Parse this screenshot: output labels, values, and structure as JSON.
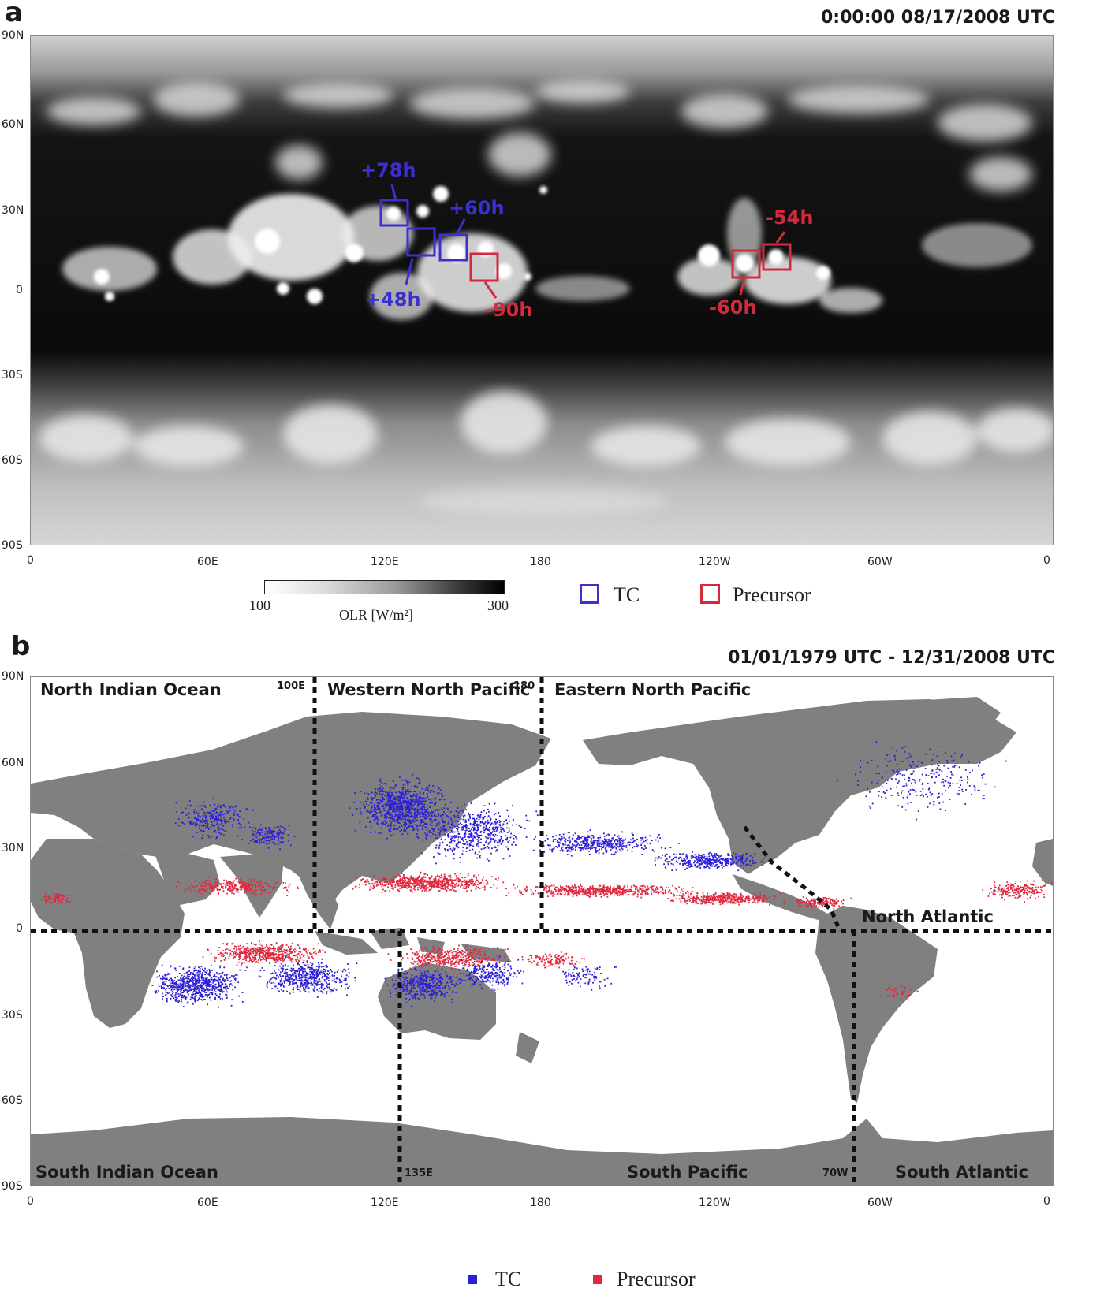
{
  "panel_a": {
    "letter": "a",
    "timestamp": "0:00:00 08/17/2008 UTC",
    "lat_ticks": [
      "90N",
      "60N",
      "30N",
      "0",
      "30S",
      "60S",
      "90S"
    ],
    "lon_ticks": [
      "0",
      "60E",
      "120E",
      "180",
      "120W",
      "60W",
      "0"
    ],
    "annotations": [
      {
        "text": "+78h",
        "kind": "TC",
        "lon": 127,
        "lat": 27
      },
      {
        "text": "+60h",
        "kind": "TC",
        "lon": 149,
        "lat": 15
      },
      {
        "text": "+48h",
        "kind": "TC",
        "lon": 138,
        "lat": 17
      },
      {
        "text": "-90h",
        "kind": "Precursor",
        "lon": 160,
        "lat": 8
      },
      {
        "text": "-54h",
        "kind": "Precursor",
        "lon": 233,
        "lat": 11
      },
      {
        "text": "-60h",
        "kind": "Precursor",
        "lon": 225,
        "lat": 9
      }
    ],
    "colorbar": {
      "min_label": "100",
      "max_label": "300",
      "label": "OLR [W/m²]"
    },
    "legend": {
      "tc": "TC",
      "precursor": "Precursor"
    }
  },
  "panel_b": {
    "letter": "b",
    "period": "01/01/1979 UTC - 12/31/2008 UTC",
    "lat_ticks": [
      "90N",
      "60N",
      "30N",
      "0",
      "30S",
      "60S",
      "90S"
    ],
    "lon_ticks": [
      "0",
      "60E",
      "120E",
      "180",
      "120W",
      "60W",
      "0"
    ],
    "regions": {
      "north_indian": "North Indian Ocean",
      "western_north_pacific": "Western North Pacific",
      "eastern_north_pacific": "Eastern North Pacific",
      "north_atlantic": "North Atlantic",
      "south_indian": "South Indian Ocean",
      "south_pacific": "South Pacific",
      "south_atlantic": "South Atlantic"
    },
    "boundary_labels": {
      "e100": "100E",
      "e180": "180",
      "e135": "135E",
      "w70": "70W"
    },
    "legend": {
      "tc": "TC",
      "precursor": "Precursor"
    }
  },
  "colors": {
    "tc": "#2c1fd6",
    "precursor": "#e0283f",
    "land": "#808080",
    "ocean_b": "#ffffff",
    "cloud_dark": "#0a0a0a",
    "cloud_light": "#f2f2f2"
  }
}
